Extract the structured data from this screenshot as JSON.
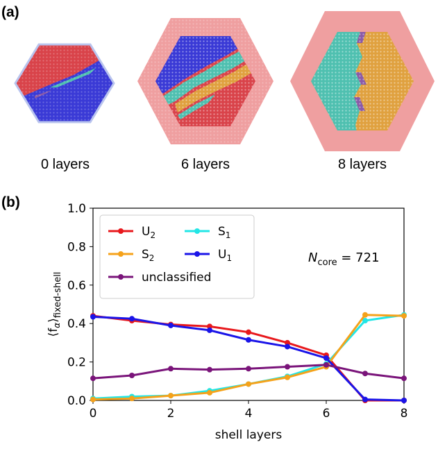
{
  "panel_a": {
    "label": "(a)",
    "captions": [
      "0 layers",
      "6 layers",
      "8 layers"
    ],
    "colors": {
      "U1": "#3a3ad6",
      "U2": "#d9434a",
      "S1": "#4fc0b0",
      "S2": "#e0a13f",
      "shell": "#ef9fa0",
      "border": "#b9c4ee"
    }
  },
  "panel_b": {
    "label": "(b)"
  },
  "chart_data": {
    "type": "line",
    "xlabel": "shell layers",
    "ylabel": "⟨f",
    "ylabel_sub_alpha": "α",
    "ylabel_close": "⟩",
    "ylabel_sub": "fixed-shell",
    "xlim": [
      0,
      8
    ],
    "ylim": [
      0,
      1
    ],
    "xticks": [
      "0",
      "2",
      "4",
      "6",
      "8"
    ],
    "yticks": [
      "0.0",
      "0.2",
      "0.4",
      "0.6",
      "0.8",
      "1.0"
    ],
    "annotation": {
      "prefix": "N",
      "sub": "core",
      "suffix": " = 721"
    },
    "legend": {
      "placement": "top-left",
      "entries": [
        {
          "series": 0,
          "label": "U",
          "sub": "2"
        },
        {
          "series": 1,
          "label": "S",
          "sub": "1"
        },
        {
          "series": 2,
          "label": "S",
          "sub": "2"
        },
        {
          "series": 3,
          "label": "U",
          "sub": "1"
        },
        {
          "series": 4,
          "label": "unclassified",
          "sub": ""
        }
      ]
    },
    "x": [
      0,
      1,
      2,
      3,
      4,
      5,
      6,
      7,
      8
    ],
    "series": [
      {
        "name": "U2",
        "color": "#e8181c",
        "values": [
          0.44,
          0.415,
          0.395,
          0.385,
          0.355,
          0.3,
          0.235,
          0.0,
          0.0
        ]
      },
      {
        "name": "S1",
        "color": "#22e6e6",
        "values": [
          0.01,
          0.02,
          0.025,
          0.05,
          0.085,
          0.125,
          0.19,
          0.415,
          0.445
        ]
      },
      {
        "name": "S2",
        "color": "#f5a21a",
        "values": [
          0.005,
          0.01,
          0.025,
          0.04,
          0.085,
          0.12,
          0.175,
          0.445,
          0.44
        ]
      },
      {
        "name": "U1",
        "color": "#1a14e8",
        "values": [
          0.435,
          0.425,
          0.39,
          0.365,
          0.315,
          0.28,
          0.22,
          0.005,
          0.0
        ]
      },
      {
        "name": "unclassified",
        "color": "#7a147a",
        "values": [
          0.115,
          0.13,
          0.165,
          0.16,
          0.165,
          0.175,
          0.185,
          0.14,
          0.115
        ]
      }
    ]
  }
}
